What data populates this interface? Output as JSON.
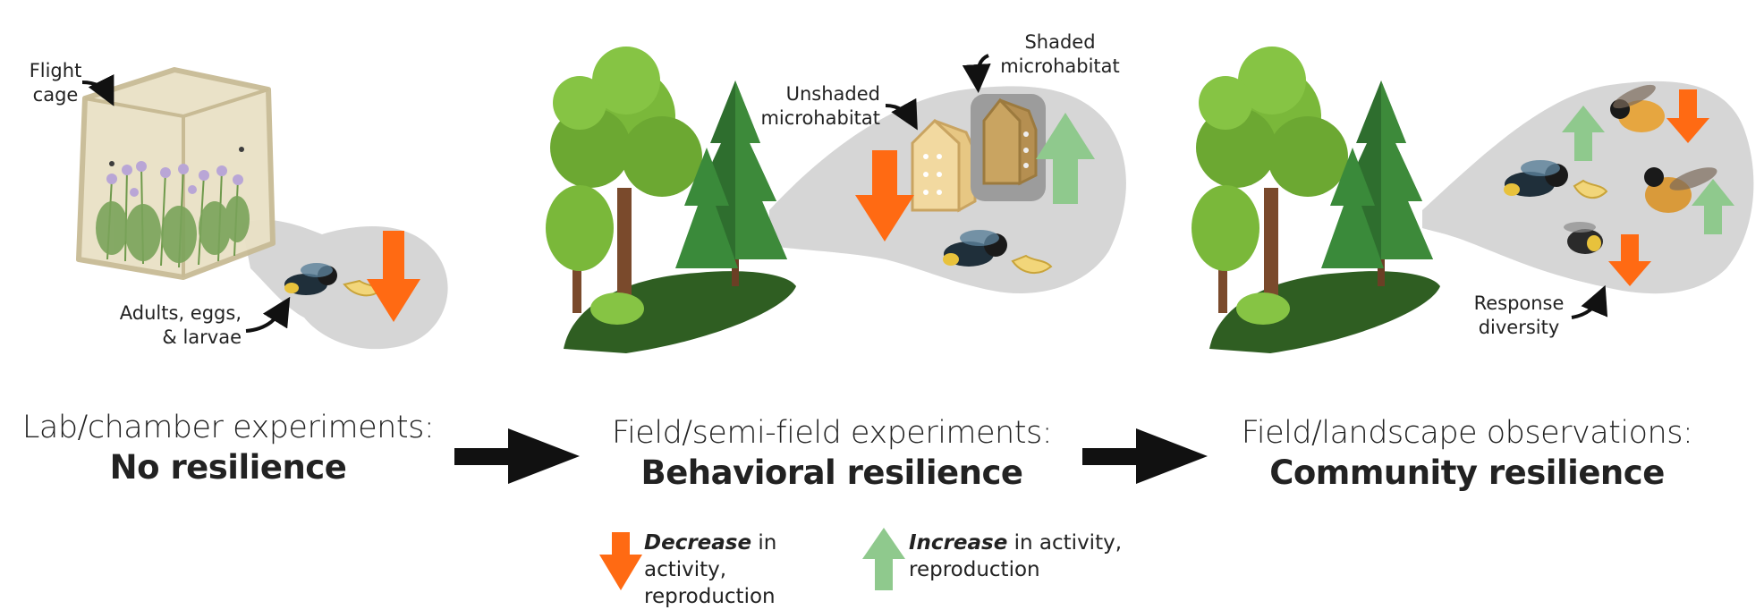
{
  "stages": [
    {
      "subtitle": "Lab/chamber experiments:",
      "title": "No resilience"
    },
    {
      "subtitle": "Field/semi-field experiments:",
      "title": "Behavioral resilience"
    },
    {
      "subtitle": "Field/landscape observations:",
      "title": "Community resilience"
    }
  ],
  "annotations": {
    "flight_cage_1": "Flight",
    "flight_cage_2": "cage",
    "adults_1": "Adults, eggs,",
    "adults_2": "& larvae",
    "unshaded_1": "Unshaded",
    "unshaded_2": "microhabitat",
    "shaded_1": "Shaded",
    "shaded_2": "microhabitat",
    "response_1": "Response",
    "response_2": "diversity"
  },
  "legend": {
    "decrease_bold": "Decrease",
    "decrease_rest": " in activity,",
    "decrease_line2": "reproduction",
    "increase_bold": "Increase",
    "increase_rest": " in activity,",
    "increase_line2": "reproduction"
  },
  "colors": {
    "decrease": "#ff6a13",
    "increase": "#8fc98d",
    "bubble": "#d6d6d6",
    "tree_light": "#7ab83a",
    "tree_dark": "#2e6e2e",
    "ground": "#2f5e22"
  }
}
